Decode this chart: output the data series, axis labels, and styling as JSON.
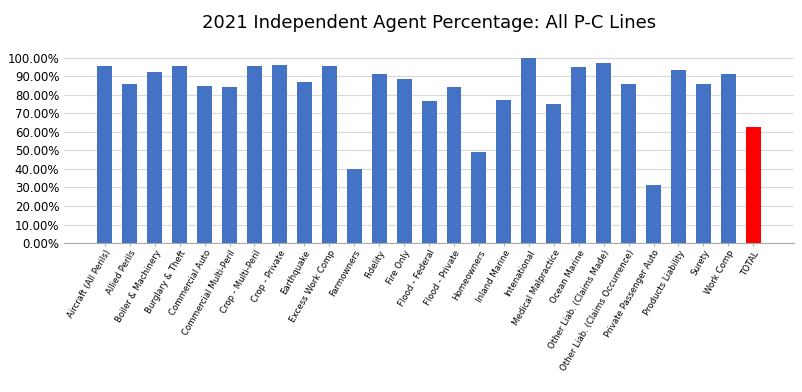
{
  "title": "2021 Independent Agent Percentage: All P-C Lines",
  "categories": [
    "Aircraft (All Perils)",
    "Allied Perils",
    "Boiler & Machinery",
    "Burglary & Theft",
    "Commercial Auto",
    "Commercial Multi-Peril",
    "Crop - Multi-Peril",
    "Crop - Private",
    "Earthquake",
    "Excess Work Comp",
    "Farmowners",
    "Fidelity",
    "Fire Only",
    "Flood - Federal",
    "Flood - Private",
    "Homeowners",
    "Inland Marine",
    "Intenational",
    "Medical Malpractice",
    "Ocean Marine",
    "Other Liab. (Claims Made)",
    "Other Liab. (Claims Occurrence)",
    "Private Passenger Auto",
    "Products Liability",
    "Surety",
    "Work Comp",
    "TOTAL"
  ],
  "values": [
    95.5,
    86.0,
    92.5,
    95.5,
    85.0,
    84.0,
    95.5,
    96.0,
    87.0,
    95.5,
    40.0,
    91.0,
    88.5,
    76.5,
    84.0,
    49.0,
    77.0,
    100.0,
    75.0,
    95.0,
    97.0,
    86.0,
    31.5,
    93.5,
    86.0,
    91.0,
    62.5
  ],
  "bar_colors": [
    "#4472C4",
    "#4472C4",
    "#4472C4",
    "#4472C4",
    "#4472C4",
    "#4472C4",
    "#4472C4",
    "#4472C4",
    "#4472C4",
    "#4472C4",
    "#4472C4",
    "#4472C4",
    "#4472C4",
    "#4472C4",
    "#4472C4",
    "#4472C4",
    "#4472C4",
    "#4472C4",
    "#4472C4",
    "#4472C4",
    "#4472C4",
    "#4472C4",
    "#4472C4",
    "#4472C4",
    "#4472C4",
    "#4472C4",
    "#FF0000"
  ],
  "ylim": [
    0,
    110
  ],
  "yticks": [
    0,
    10,
    20,
    30,
    40,
    50,
    60,
    70,
    80,
    90,
    100
  ],
  "ytick_labels": [
    "0.00%",
    "10.00%",
    "20.00%",
    "30.00%",
    "40.00%",
    "50.00%",
    "60.00%",
    "70.00%",
    "80.00%",
    "90.00%",
    "100.00%"
  ],
  "background_color": "#FFFFFF",
  "grid_color": "#D9D9D9",
  "title_fontsize": 13,
  "label_fontsize": 6.2,
  "ytick_fontsize": 8.5
}
